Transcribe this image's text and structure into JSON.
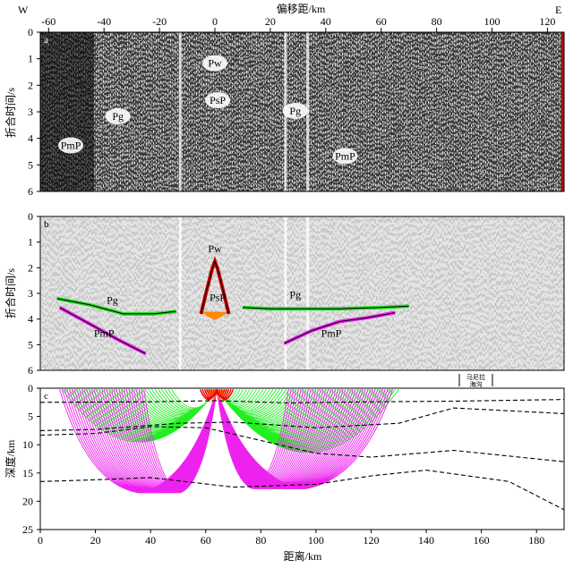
{
  "chart_data": [
    {
      "type": "scatter",
      "panel": "a",
      "top_axis": {
        "label": "偏移距/km",
        "west": "W",
        "east": "E",
        "ticks": [
          -60,
          -40,
          -20,
          0,
          20,
          40,
          60,
          80,
          100,
          120
        ],
        "range": [
          -63,
          126
        ]
      },
      "ylabel": "折合时间/s",
      "ylim": [
        0,
        6
      ],
      "yticks": [
        0,
        1,
        2,
        3,
        4,
        5,
        6
      ],
      "phase_labels": [
        {
          "text": "Pw",
          "x": 0,
          "t": 1.3
        },
        {
          "text": "PsP",
          "x": 1,
          "t": 2.7
        },
        {
          "text": "Pg",
          "x": -35,
          "t": 3.3
        },
        {
          "text": "Pg",
          "x": 29,
          "t": 3.1
        },
        {
          "text": "PmP",
          "x": -52,
          "t": 4.4
        },
        {
          "text": "PmP",
          "x": 47,
          "t": 4.8
        }
      ]
    },
    {
      "type": "line",
      "panel": "b",
      "ylabel": "折合时间/s",
      "ylim": [
        0,
        6
      ],
      "yticks": [
        0,
        1,
        2,
        3,
        4,
        5,
        6
      ],
      "phase_labels": [
        {
          "text": "Pw",
          "x": 0,
          "t": 1.4
        },
        {
          "text": "PsP",
          "x": 1,
          "t": 3.3
        },
        {
          "text": "Pg",
          "x": -37,
          "t": 3.4
        },
        {
          "text": "Pg",
          "x": 29,
          "t": 3.2
        },
        {
          "text": "PmP",
          "x": -40,
          "t": 4.7
        },
        {
          "text": "PmP",
          "x": 42,
          "t": 4.7
        }
      ],
      "series": [
        {
          "phase": "Pg",
          "color": "#22dd22",
          "x": [
            -57,
            -45,
            -33,
            -22,
            -14
          ],
          "t": [
            3.2,
            3.45,
            3.8,
            3.8,
            3.7
          ]
        },
        {
          "phase": "Pg",
          "color": "#22dd22",
          "x": [
            10,
            20,
            30,
            45,
            60,
            70
          ],
          "t": [
            3.55,
            3.6,
            3.6,
            3.6,
            3.55,
            3.5
          ]
        },
        {
          "phase": "PmP",
          "color": "#ee22ee",
          "x": [
            -56,
            -45,
            -35,
            -25
          ],
          "t": [
            3.55,
            4.2,
            4.8,
            5.35
          ]
        },
        {
          "phase": "PmP",
          "color": "#ee22ee",
          "x": [
            25,
            35,
            45,
            55,
            65
          ],
          "t": [
            4.95,
            4.45,
            4.1,
            3.95,
            3.75
          ]
        },
        {
          "phase": "PsP",
          "color": "#ff8800",
          "x": [
            -4,
            -2,
            0,
            2,
            4
          ],
          "t": [
            3.75,
            3.9,
            4.0,
            3.9,
            3.75
          ]
        },
        {
          "phase": "Pw",
          "color": "#cc0000",
          "x": [
            -5,
            -3,
            -1,
            0,
            1,
            3,
            5
          ],
          "t": [
            3.8,
            2.9,
            2.05,
            1.75,
            2.05,
            2.9,
            3.8
          ]
        }
      ]
    },
    {
      "type": "line",
      "panel": "c",
      "xlabel": "距离/km",
      "ylabel": "深度/km",
      "xlim": [
        0,
        190
      ],
      "xticks": [
        0,
        20,
        40,
        60,
        80,
        100,
        120,
        140,
        160,
        180
      ],
      "ylim": [
        0,
        25
      ],
      "yticks": [
        0,
        5,
        10,
        15,
        20,
        25
      ],
      "annotation": {
        "text": "马尼拉海沟",
        "x": [
          152,
          164
        ]
      },
      "source_km": 64,
      "interfaces": [
        {
          "x": [
            0,
            40,
            64,
            90,
            120,
            150,
            190
          ],
          "depth": [
            2.5,
            2.4,
            2.2,
            2.6,
            2.4,
            2.3,
            2.0
          ]
        },
        {
          "x": [
            0,
            20,
            50,
            70,
            100,
            130,
            150,
            190
          ],
          "depth": [
            7.5,
            7.3,
            6.2,
            6.0,
            7.0,
            6.2,
            3.5,
            4.5
          ]
        },
        {
          "x": [
            0,
            20,
            40,
            60,
            100,
            120,
            150,
            190
          ],
          "depth": [
            8.3,
            8.0,
            6.8,
            7.0,
            11.5,
            12.2,
            11.0,
            13.0
          ]
        },
        {
          "x": [
            0,
            20,
            40,
            70,
            100,
            120,
            140,
            170,
            190
          ],
          "depth": [
            16.5,
            16.2,
            15.8,
            17.5,
            17.0,
            15.5,
            14.5,
            16.5,
            21.5
          ]
        }
      ],
      "rays": [
        {
          "phase": "Pg",
          "color": "#22ee22",
          "receivers_km": [
            8,
            48
          ],
          "turn_depth": 9.5
        },
        {
          "phase": "Pg",
          "color": "#22ee22",
          "receivers_km": [
            70,
            131
          ],
          "turn_depth": 11.5
        },
        {
          "phase": "PmP",
          "color": "#ee22ee",
          "receivers_km": [
            7,
            38
          ],
          "reflector_depth": 18.5
        },
        {
          "phase": "PmP",
          "color": "#ee22ee",
          "receivers_km": [
            90,
            128
          ],
          "reflector_depth": 17.8
        },
        {
          "phase": "PsP",
          "color": "#ff8800",
          "receivers_km": [
            60,
            68
          ],
          "turn_depth": 2.4
        },
        {
          "phase": "Pw",
          "color": "#ee0000",
          "receivers_km": [
            58,
            70
          ],
          "turn_depth": 2.0
        }
      ]
    }
  ]
}
